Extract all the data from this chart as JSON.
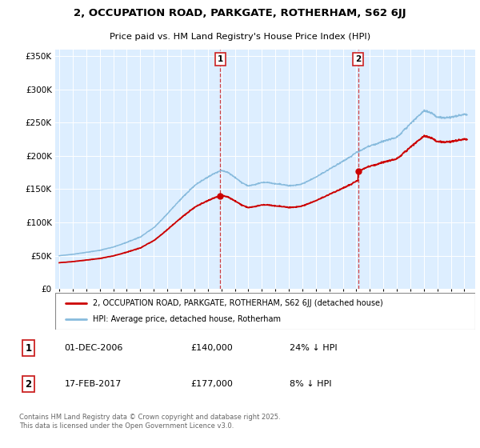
{
  "title": "2, OCCUPATION ROAD, PARKGATE, ROTHERHAM, S62 6JJ",
  "subtitle": "Price paid vs. HM Land Registry's House Price Index (HPI)",
  "legend_label_red": "2, OCCUPATION ROAD, PARKGATE, ROTHERHAM, S62 6JJ (detached house)",
  "legend_label_blue": "HPI: Average price, detached house, Rotherham",
  "footnote": "Contains HM Land Registry data © Crown copyright and database right 2025.\nThis data is licensed under the Open Government Licence v3.0.",
  "annotation1_label": "1",
  "annotation1_date": "01-DEC-2006",
  "annotation1_price": "£140,000",
  "annotation1_hpi": "24% ↓ HPI",
  "annotation2_label": "2",
  "annotation2_date": "17-FEB-2017",
  "annotation2_price": "£177,000",
  "annotation2_hpi": "8% ↓ HPI",
  "ylim": [
    0,
    360000
  ],
  "yticks": [
    0,
    50000,
    100000,
    150000,
    200000,
    250000,
    300000,
    350000
  ],
  "background_color": "#ddeeff",
  "grid_color": "#ffffff",
  "red_color": "#cc0000",
  "blue_color": "#88bbdd",
  "vline_color": "#cc2222",
  "annotation_box_color": "#cc2222",
  "hpi_years": [
    1995.0,
    1995.5,
    1996.0,
    1996.5,
    1997.0,
    1997.5,
    1998.0,
    1998.5,
    1999.0,
    1999.5,
    2000.0,
    2000.5,
    2001.0,
    2001.5,
    2002.0,
    2002.5,
    2003.0,
    2003.5,
    2004.0,
    2004.5,
    2005.0,
    2005.5,
    2006.0,
    2006.5,
    2007.0,
    2007.5,
    2008.0,
    2008.5,
    2009.0,
    2009.5,
    2010.0,
    2010.5,
    2011.0,
    2011.5,
    2012.0,
    2012.5,
    2013.0,
    2013.5,
    2014.0,
    2014.5,
    2015.0,
    2015.5,
    2016.0,
    2016.5,
    2017.0,
    2017.5,
    2018.0,
    2018.5,
    2019.0,
    2019.5,
    2020.0,
    2020.5,
    2021.0,
    2021.5,
    2022.0,
    2022.5,
    2023.0,
    2023.5,
    2024.0,
    2024.5,
    2025.0
  ],
  "hpi_values": [
    50000,
    51000,
    52000,
    53500,
    55000,
    56500,
    58000,
    60500,
    63000,
    66500,
    70000,
    74000,
    78000,
    85000,
    92000,
    102000,
    113000,
    124000,
    135000,
    145000,
    155000,
    162000,
    168000,
    174000,
    178000,
    175000,
    168000,
    160000,
    155000,
    157000,
    160000,
    160000,
    158000,
    157000,
    155000,
    156000,
    158000,
    163000,
    168000,
    174000,
    180000,
    186000,
    192000,
    198000,
    205000,
    210000,
    215000,
    218000,
    222000,
    225000,
    228000,
    238000,
    248000,
    258000,
    268000,
    265000,
    258000,
    257000,
    258000,
    260000,
    262000
  ],
  "sale1_x": 2006.92,
  "sale1_y": 140000,
  "sale2_x": 2017.13,
  "sale2_y": 177000,
  "xmin": 1994.7,
  "xmax": 2025.8
}
